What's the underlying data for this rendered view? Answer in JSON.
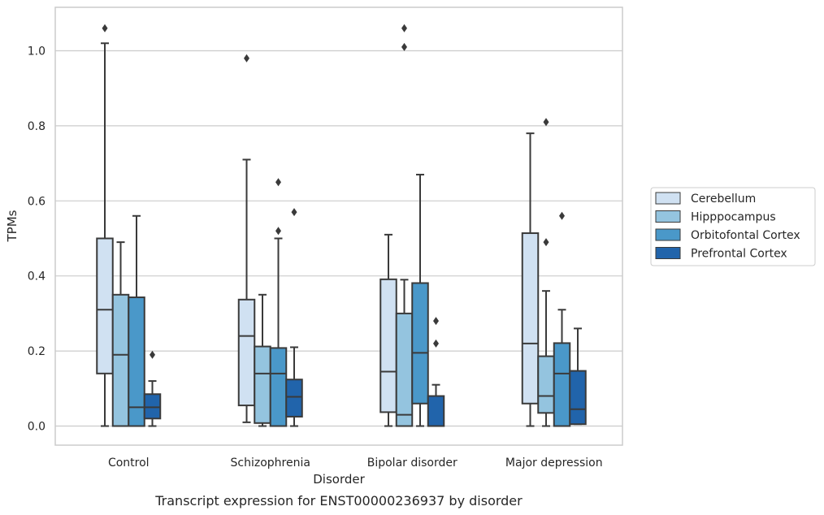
{
  "chart_data": {
    "type": "box",
    "title": "",
    "caption": "Transcript expression for ENST00000236937 by disorder",
    "xlabel": "Disorder",
    "ylabel": "TPMs",
    "ylim": [
      -0.05,
      1.12
    ],
    "yticks": [
      "0.0",
      "0.2",
      "0.4",
      "0.6",
      "0.8",
      "1.0"
    ],
    "grid": "horizontal",
    "legend_position": "right",
    "categories": [
      "Control",
      "Schizophrenia",
      "Bipolar disorder",
      "Major depression"
    ],
    "series": [
      {
        "name": "Cerebellum",
        "color": "#d0e1f2",
        "boxes": [
          {
            "whislo": 0.0,
            "q1": 0.14,
            "med": 0.31,
            "q3": 0.5,
            "whishi": 1.02,
            "fliers": [
              1.06
            ]
          },
          {
            "whislo": 0.01,
            "q1": 0.055,
            "med": 0.24,
            "q3": 0.337,
            "whishi": 0.71,
            "fliers": [
              0.98
            ]
          },
          {
            "whislo": 0.0,
            "q1": 0.037,
            "med": 0.145,
            "q3": 0.391,
            "whishi": 0.51,
            "fliers": []
          },
          {
            "whislo": 0.0,
            "q1": 0.06,
            "med": 0.22,
            "q3": 0.514,
            "whishi": 0.78,
            "fliers": []
          }
        ]
      },
      {
        "name": "Hipppocampus",
        "color": "#94c4df",
        "boxes": [
          {
            "whislo": 0.0,
            "q1": 0.0,
            "med": 0.19,
            "q3": 0.35,
            "whishi": 0.49,
            "fliers": []
          },
          {
            "whislo": 0.0,
            "q1": 0.008,
            "med": 0.14,
            "q3": 0.212,
            "whishi": 0.35,
            "fliers": []
          },
          {
            "whislo": 0.0,
            "q1": 0.0,
            "med": 0.03,
            "q3": 0.3,
            "whishi": 0.39,
            "fliers": [
              1.06,
              1.01
            ]
          },
          {
            "whislo": 0.0,
            "q1": 0.035,
            "med": 0.08,
            "q3": 0.186,
            "whishi": 0.36,
            "fliers": [
              0.49,
              0.81
            ]
          }
        ]
      },
      {
        "name": "Orbitofontal Cortex",
        "color": "#4a98c9",
        "boxes": [
          {
            "whislo": 0.0,
            "q1": 0.0,
            "med": 0.05,
            "q3": 0.343,
            "whishi": 0.56,
            "fliers": []
          },
          {
            "whislo": 0.0,
            "q1": 0.0,
            "med": 0.14,
            "q3": 0.208,
            "whishi": 0.5,
            "fliers": [
              0.52,
              0.65
            ]
          },
          {
            "whislo": 0.0,
            "q1": 0.06,
            "med": 0.195,
            "q3": 0.381,
            "whishi": 0.67,
            "fliers": []
          },
          {
            "whislo": 0.0,
            "q1": 0.0,
            "med": 0.14,
            "q3": 0.221,
            "whishi": 0.31,
            "fliers": [
              0.56
            ]
          }
        ]
      },
      {
        "name": "Prefrontal Cortex",
        "color": "#2164ab",
        "boxes": [
          {
            "whislo": 0.0,
            "q1": 0.02,
            "med": 0.05,
            "q3": 0.085,
            "whishi": 0.12,
            "fliers": [
              0.19
            ]
          },
          {
            "whislo": 0.0,
            "q1": 0.025,
            "med": 0.078,
            "q3": 0.124,
            "whishi": 0.21,
            "fliers": [
              0.57
            ]
          },
          {
            "whislo": 0.0,
            "q1": 0.0,
            "med": 0.0,
            "q3": 0.08,
            "whishi": 0.11,
            "fliers": [
              0.22,
              0.28
            ]
          },
          {
            "whislo": 0.005,
            "q1": 0.005,
            "med": 0.045,
            "q3": 0.147,
            "whishi": 0.26,
            "fliers": []
          }
        ]
      }
    ]
  }
}
